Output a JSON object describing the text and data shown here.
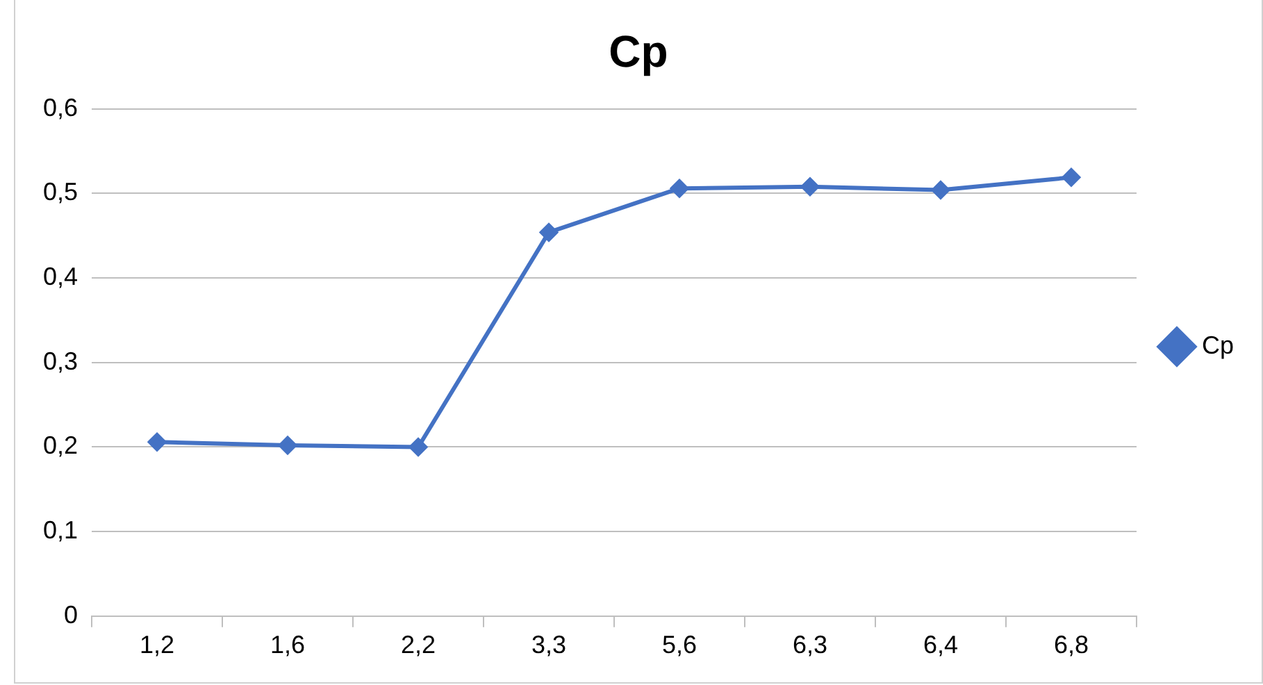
{
  "chart_data": {
    "type": "line",
    "title": "Cp",
    "categories": [
      "1,2",
      "1,6",
      "2,2",
      "3,3",
      "5,6",
      "6,3",
      "6,4",
      "6,8"
    ],
    "series": [
      {
        "name": "Cp",
        "color": "#4472c4",
        "values": [
          0.206,
          0.202,
          0.2,
          0.454,
          0.506,
          0.508,
          0.504,
          0.519
        ]
      }
    ],
    "ylim": [
      0,
      0.6
    ],
    "yticks": [
      {
        "value": 0,
        "label": "0"
      },
      {
        "value": 0.1,
        "label": "0,1"
      },
      {
        "value": 0.2,
        "label": "0,2"
      },
      {
        "value": 0.3,
        "label": "0,3"
      },
      {
        "value": 0.4,
        "label": "0,4"
      },
      {
        "value": 0.5,
        "label": "0,5"
      },
      {
        "value": 0.6,
        "label": "0,6"
      }
    ],
    "grid": "y",
    "legend": "right",
    "marker": "diamond",
    "line_style": "solid"
  }
}
